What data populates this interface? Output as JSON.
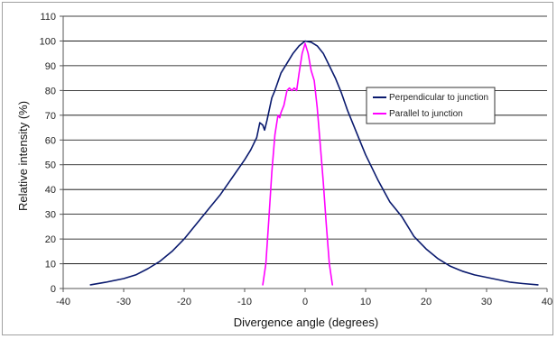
{
  "chart_data": {
    "type": "line",
    "xlabel": "Divergence angle (degrees)",
    "ylabel": "Relative intensity (%)",
    "xlim": [
      -40,
      40
    ],
    "ylim": [
      0,
      110
    ],
    "x_ticks": [
      -40,
      -30,
      -20,
      -10,
      0,
      10,
      20,
      30,
      40
    ],
    "y_ticks": [
      0,
      10,
      20,
      30,
      40,
      50,
      60,
      70,
      80,
      90,
      100,
      110
    ],
    "grid": "horizontal",
    "legend_position": "right",
    "series": [
      {
        "name": "Perpendicular to junction",
        "color": "#0a1a6e",
        "points": [
          [
            -35.5,
            1.5
          ],
          [
            -33,
            2.5
          ],
          [
            -30,
            4
          ],
          [
            -28,
            5.5
          ],
          [
            -26,
            8
          ],
          [
            -24,
            11
          ],
          [
            -22,
            15
          ],
          [
            -20,
            20
          ],
          [
            -18,
            26
          ],
          [
            -16,
            32
          ],
          [
            -14,
            38
          ],
          [
            -12,
            45
          ],
          [
            -10,
            52
          ],
          [
            -9,
            56
          ],
          [
            -8,
            61
          ],
          [
            -7.5,
            67
          ],
          [
            -7,
            66
          ],
          [
            -6.7,
            64
          ],
          [
            -6.3,
            68
          ],
          [
            -5.5,
            77
          ],
          [
            -5,
            80
          ],
          [
            -4,
            87
          ],
          [
            -3,
            91
          ],
          [
            -2,
            95
          ],
          [
            -1,
            98
          ],
          [
            0,
            100
          ],
          [
            1,
            99.5
          ],
          [
            2,
            98
          ],
          [
            3,
            95
          ],
          [
            4,
            90
          ],
          [
            5,
            85
          ],
          [
            6,
            79
          ],
          [
            7,
            72
          ],
          [
            8,
            66
          ],
          [
            9,
            60
          ],
          [
            10,
            54
          ],
          [
            12,
            44
          ],
          [
            14,
            35
          ],
          [
            16,
            29
          ],
          [
            18,
            21
          ],
          [
            20,
            16
          ],
          [
            22,
            12
          ],
          [
            24,
            9
          ],
          [
            26,
            7
          ],
          [
            28,
            5.5
          ],
          [
            30,
            4.5
          ],
          [
            32,
            3.5
          ],
          [
            34,
            2.5
          ],
          [
            36,
            2
          ],
          [
            38.5,
            1.5
          ]
        ]
      },
      {
        "name": "Parallel to junction",
        "color": "#ff00ff",
        "points": [
          [
            -7,
            1.5
          ],
          [
            -6.5,
            10
          ],
          [
            -6,
            28
          ],
          [
            -5.5,
            47
          ],
          [
            -5,
            62
          ],
          [
            -4.5,
            70
          ],
          [
            -4.2,
            69
          ],
          [
            -4,
            71
          ],
          [
            -3.5,
            74
          ],
          [
            -3,
            80
          ],
          [
            -2.6,
            81
          ],
          [
            -2.2,
            80
          ],
          [
            -1.8,
            81
          ],
          [
            -1.4,
            80
          ],
          [
            -1,
            87
          ],
          [
            -0.5,
            95
          ],
          [
            0,
            99
          ],
          [
            0.5,
            95
          ],
          [
            1,
            88
          ],
          [
            1.5,
            84
          ],
          [
            2,
            73
          ],
          [
            2.5,
            58
          ],
          [
            3,
            43
          ],
          [
            3.5,
            26
          ],
          [
            4,
            10
          ],
          [
            4.5,
            1.5
          ]
        ]
      }
    ]
  }
}
